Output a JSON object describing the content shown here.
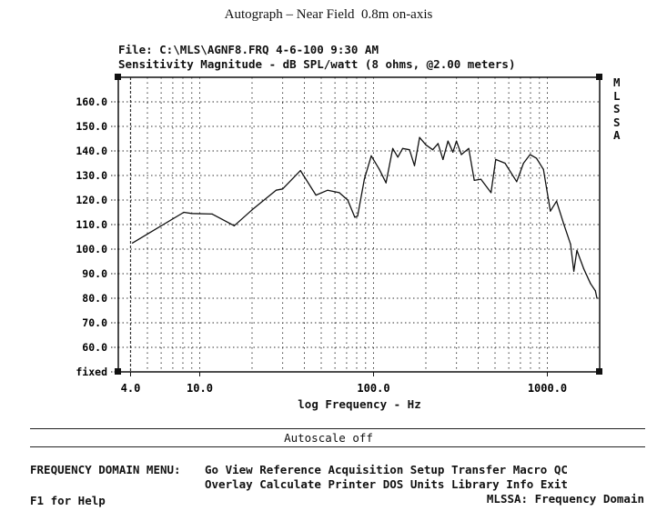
{
  "header": {
    "title": "Autograph – Near Field  0.8m on-axis",
    "file_line": "File: C:\\MLS\\AGNF8.FRQ 4-6-100 9:30 AM",
    "measure_line": "Sensitivity Magnitude - dB SPL/watt (8 ohms, @2.00 meters)",
    "side_label": [
      "M",
      "L",
      "S",
      "S",
      "A"
    ]
  },
  "status": {
    "autoscale": "Autoscale off"
  },
  "menu": {
    "label": "FREQUENCY DOMAIN MENU:",
    "row1": [
      "Go",
      "View",
      "Reference",
      "Acquisition",
      "Setup",
      "Transfer",
      "Macro",
      "QC"
    ],
    "row2": [
      "Overlay",
      "Calculate",
      "Printer",
      "DOS",
      "Units",
      "Library",
      "Info",
      "Exit"
    ],
    "help": "F1 for Help",
    "mode": "MLSSA: Frequency Domain"
  },
  "chart_data": {
    "type": "line",
    "title": "Sensitivity Magnitude - dB SPL/watt (8 ohms, @2.00 meters)",
    "xlabel": "log Frequency - Hz",
    "ylabel": "",
    "xscale": "log",
    "xlim": [
      3.4,
      2000
    ],
    "ylim": [
      50,
      170
    ],
    "grid": true,
    "x_ticks": [
      {
        "v": 4,
        "label": "4.0"
      },
      {
        "v": 10,
        "label": "10.0"
      },
      {
        "v": 100,
        "label": "100.0"
      },
      {
        "v": 1000,
        "label": "1000.0"
      }
    ],
    "y_ticks": [
      {
        "v": 160,
        "label": "160.0"
      },
      {
        "v": 150,
        "label": "150.0"
      },
      {
        "v": 140,
        "label": "140.0"
      },
      {
        "v": 130,
        "label": "130.0"
      },
      {
        "v": 120,
        "label": "120.0"
      },
      {
        "v": 110,
        "label": "110.0"
      },
      {
        "v": 100,
        "label": "100.0"
      },
      {
        "v": 90,
        "label": "90.0"
      },
      {
        "v": 80,
        "label": "80.0"
      },
      {
        "v": 70,
        "label": "70.0"
      },
      {
        "v": 60,
        "label": "60.0"
      },
      {
        "v": 50,
        "label": "fixed"
      }
    ],
    "series": [
      {
        "name": "magnitude",
        "x": [
          4.1,
          8.1,
          9,
          11.8,
          15.8,
          20,
          27.5,
          30,
          38,
          46.6,
          54.5,
          63.5,
          71,
          78,
          81,
          88.5,
          97,
          108,
          118,
          129,
          138,
          147,
          161,
          172,
          184,
          200,
          219,
          235,
          251,
          268,
          286,
          300,
          320,
          353,
          380,
          415,
          474,
          505,
          571,
          666,
          729,
          795,
          866,
          950,
          1040,
          1130,
          1240,
          1360,
          1420,
          1480,
          1620,
          1770,
          1890,
          1930
        ],
        "y": [
          102.5,
          115,
          114.5,
          114.3,
          109.5,
          116,
          124,
          124.5,
          132,
          122,
          124,
          123,
          120,
          113,
          113.5,
          128.5,
          138,
          132.5,
          127,
          141,
          137.5,
          141,
          140.5,
          134,
          145.5,
          142.5,
          140.5,
          143,
          136.5,
          144,
          139.5,
          144,
          138.5,
          141,
          128,
          128.5,
          123,
          136.5,
          135,
          127.5,
          135,
          138.5,
          137,
          132.5,
          115.5,
          119.5,
          110.5,
          102,
          91,
          99.5,
          92,
          86,
          83,
          80
        ]
      }
    ]
  }
}
